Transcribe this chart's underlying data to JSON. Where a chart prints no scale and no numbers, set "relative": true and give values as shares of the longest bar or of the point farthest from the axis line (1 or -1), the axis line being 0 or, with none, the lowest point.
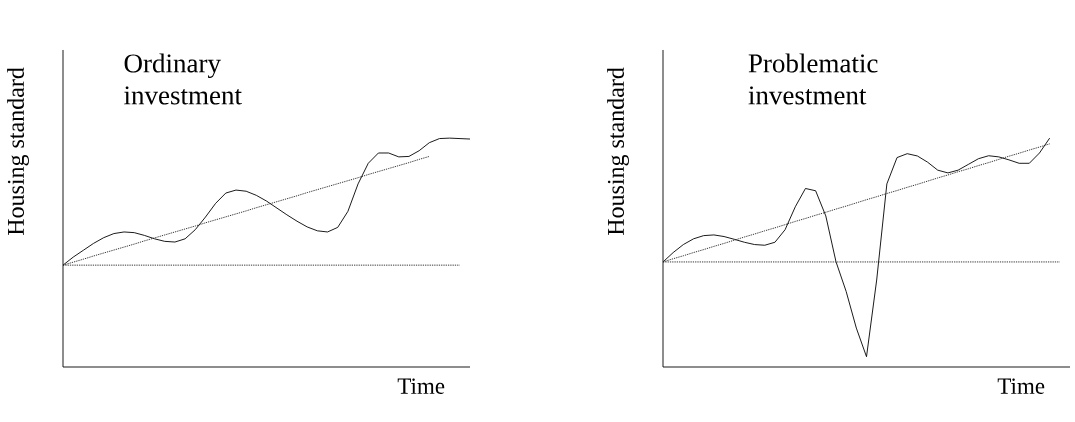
{
  "chart_data": [
    {
      "type": "line",
      "title": "Ordinary investment",
      "xlabel": "Time",
      "ylabel": "Housing standard",
      "relative": true,
      "categories": [
        null,
        null,
        null,
        null,
        null,
        null,
        null,
        null,
        null,
        null,
        null,
        null,
        null,
        null,
        null,
        null,
        null,
        null,
        null,
        null,
        null,
        null,
        null,
        null,
        null,
        null,
        null,
        null,
        null,
        null,
        null,
        null,
        null,
        null,
        null,
        null,
        null,
        null,
        null,
        null,
        null
      ],
      "series": [
        {
          "color": "#000000",
          "line_style": "solid",
          "values": [
            0.445,
            0.48,
            0.51,
            0.54,
            0.565,
            0.583,
            0.59,
            0.587,
            0.575,
            0.56,
            0.549,
            0.546,
            0.56,
            0.6,
            0.655,
            0.715,
            0.76,
            0.773,
            0.768,
            0.75,
            0.725,
            0.695,
            0.665,
            0.637,
            0.612,
            0.595,
            0.59,
            0.61,
            0.68,
            0.8,
            0.89,
            0.935,
            0.935,
            0.918,
            0.92,
            0.945,
            0.98,
            0.998,
            1.0,
            0.998,
            0.996
          ]
        },
        {
          "color": "#222222",
          "line_style": "dotted",
          "values": [
            0.445,
            0.458,
            0.471,
            0.485,
            0.498,
            0.511,
            0.524,
            0.537,
            0.551,
            0.564,
            0.577,
            0.59,
            0.603,
            0.616,
            0.63,
            0.643,
            0.656,
            0.669,
            0.682,
            0.696,
            0.709,
            0.722,
            0.735,
            0.748,
            0.762,
            0.775,
            0.788,
            0.801,
            0.814,
            0.827,
            0.841,
            0.854,
            0.867,
            0.88,
            0.893,
            0.907,
            0.92,
            null,
            null,
            null,
            null
          ]
        },
        {
          "color": "#222222",
          "line_style": "dotted",
          "values": [
            0.445,
            0.445,
            0.445,
            0.445,
            0.445,
            0.445,
            0.445,
            0.445,
            0.445,
            0.445,
            0.445,
            0.445,
            0.445,
            0.445,
            0.445,
            0.445,
            0.445,
            0.445,
            0.445,
            0.445,
            0.445,
            0.445,
            0.445,
            0.445,
            0.445,
            0.445,
            0.445,
            0.445,
            0.445,
            0.445,
            0.445,
            0.445,
            0.445,
            0.445,
            0.445,
            0.445,
            0.445,
            0.445,
            0.445,
            0.445,
            null
          ]
        }
      ]
    },
    {
      "type": "line",
      "title": "Problematic investment",
      "xlabel": "Time",
      "ylabel": "Housing standard",
      "relative": true,
      "categories": [
        null,
        null,
        null,
        null,
        null,
        null,
        null,
        null,
        null,
        null,
        null,
        null,
        null,
        null,
        null,
        null,
        null,
        null,
        null,
        null,
        null,
        null,
        null,
        null,
        null,
        null,
        null,
        null,
        null,
        null,
        null,
        null,
        null,
        null,
        null,
        null,
        null,
        null,
        null,
        null,
        null
      ],
      "series": [
        {
          "color": "#000000",
          "line_style": "solid",
          "values": [
            0.459,
            0.5,
            0.535,
            0.56,
            0.574,
            0.577,
            0.57,
            0.558,
            0.545,
            0.535,
            0.532,
            0.545,
            0.6,
            0.7,
            0.78,
            0.77,
            0.66,
            0.46,
            0.33,
            0.17,
            0.045,
            0.38,
            0.8,
            0.915,
            0.932,
            0.922,
            0.895,
            0.86,
            0.848,
            0.86,
            0.885,
            0.91,
            0.923,
            0.918,
            0.905,
            0.89,
            0.89,
            0.935,
            1.0,
            null,
            null
          ]
        },
        {
          "color": "#222222",
          "line_style": "dotted",
          "values": [
            0.459,
            0.473,
            0.486,
            0.5,
            0.513,
            0.527,
            0.54,
            0.554,
            0.568,
            0.581,
            0.595,
            0.608,
            0.622,
            0.636,
            0.649,
            0.663,
            0.676,
            0.69,
            0.703,
            0.717,
            0.731,
            0.744,
            0.758,
            0.771,
            0.785,
            0.798,
            0.812,
            0.826,
            0.839,
            0.853,
            0.866,
            0.88,
            0.893,
            0.907,
            0.921,
            0.934,
            0.948,
            0.961,
            0.975,
            null,
            null
          ]
        },
        {
          "color": "#222222",
          "line_style": "dotted",
          "values": [
            0.459,
            0.459,
            0.459,
            0.459,
            0.459,
            0.459,
            0.459,
            0.459,
            0.459,
            0.459,
            0.459,
            0.459,
            0.459,
            0.459,
            0.459,
            0.459,
            0.459,
            0.459,
            0.459,
            0.459,
            0.459,
            0.459,
            0.459,
            0.459,
            0.459,
            0.459,
            0.459,
            0.459,
            0.459,
            0.459,
            0.459,
            0.459,
            0.459,
            0.459,
            0.459,
            0.459,
            0.459,
            0.459,
            0.459,
            0.459,
            null
          ]
        }
      ]
    }
  ]
}
